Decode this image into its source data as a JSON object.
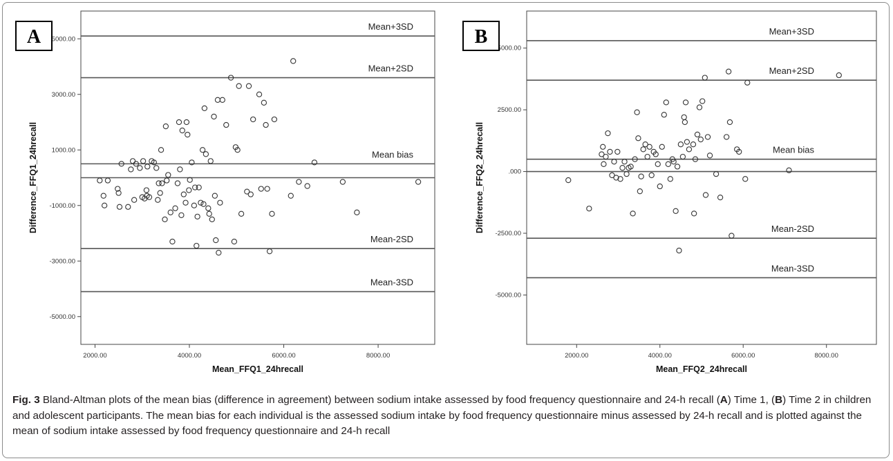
{
  "caption": {
    "fig_label": "Fig. 3",
    "text_1": " Bland-Altman plots of the mean bias (difference in agreement) between sodium intake assessed by food frequency questionnaire and 24-h recall (",
    "label_a": "A",
    "text_2": ") Time 1, (",
    "label_b": "B",
    "text_3": ") Time 2 in children and adolescent participants. The mean bias for each individual is the assessed sodium intake by food frequency questionnaire minus assessed by 24-h recall and is plotted against the mean of sodium intake assessed by food frequency questionnaire and 24-h recall"
  },
  "chart_data": [
    {
      "type": "scatter",
      "panel_label": "A",
      "xlabel": "Mean_FFQ1_24hrecall",
      "ylabel": "Difference_FFQ1_24hrecall",
      "xlim": [
        1700,
        9200
      ],
      "ylim": [
        -6000,
        6000
      ],
      "xticks": [
        2000,
        4000,
        6000,
        8000
      ],
      "yticks": [
        5000,
        3000,
        1000,
        -1000,
        -3000,
        -5000
      ],
      "xtick_labels": [
        "2000.00",
        "4000.00",
        "6000.00",
        "8000.00"
      ],
      "ytick_labels": [
        "5000.00",
        "3000.00",
        "1000.00",
        "-1000.00",
        "-3000.00",
        "-5000.00"
      ],
      "grid": false,
      "reference_lines": [
        {
          "label": "Mean+3SD",
          "y": 5100
        },
        {
          "label": "Mean+2SD",
          "y": 3600
        },
        {
          "label": "Mean bias",
          "y": 500
        },
        {
          "label": "",
          "y": 0
        },
        {
          "label": "Mean-2SD",
          "y": -2550
        },
        {
          "label": "Mean-3SD",
          "y": -4100
        }
      ],
      "marker_color": "#333333",
      "points": [
        [
          2100,
          -100
        ],
        [
          2180,
          -650
        ],
        [
          2200,
          -1000
        ],
        [
          2270,
          -100
        ],
        [
          2480,
          -400
        ],
        [
          2500,
          -550
        ],
        [
          2520,
          -1050
        ],
        [
          2560,
          500
        ],
        [
          2700,
          -1050
        ],
        [
          2760,
          300
        ],
        [
          2800,
          600
        ],
        [
          2830,
          -800
        ],
        [
          2870,
          500
        ],
        [
          2950,
          350
        ],
        [
          3000,
          -700
        ],
        [
          3020,
          600
        ],
        [
          3050,
          -750
        ],
        [
          3090,
          -450
        ],
        [
          3100,
          -650
        ],
        [
          3110,
          400
        ],
        [
          3150,
          -700
        ],
        [
          3200,
          600
        ],
        [
          3250,
          550
        ],
        [
          3300,
          350
        ],
        [
          3330,
          -800
        ],
        [
          3350,
          -200
        ],
        [
          3380,
          -550
        ],
        [
          3400,
          1000
        ],
        [
          3420,
          -200
        ],
        [
          3480,
          -1500
        ],
        [
          3500,
          1850
        ],
        [
          3520,
          -100
        ],
        [
          3550,
          100
        ],
        [
          3600,
          -1250
        ],
        [
          3640,
          -2300
        ],
        [
          3700,
          -1100
        ],
        [
          3750,
          -200
        ],
        [
          3780,
          2000
        ],
        [
          3800,
          300
        ],
        [
          3830,
          -1350
        ],
        [
          3850,
          1700
        ],
        [
          3880,
          -600
        ],
        [
          3920,
          -900
        ],
        [
          3940,
          2000
        ],
        [
          3960,
          1550
        ],
        [
          3990,
          -450
        ],
        [
          4010,
          -80
        ],
        [
          4050,
          550
        ],
        [
          4100,
          -1000
        ],
        [
          4120,
          -350
        ],
        [
          4150,
          -2450
        ],
        [
          4170,
          -1400
        ],
        [
          4200,
          -350
        ],
        [
          4240,
          -900
        ],
        [
          4280,
          1000
        ],
        [
          4300,
          -950
        ],
        [
          4320,
          2500
        ],
        [
          4350,
          850
        ],
        [
          4400,
          -1100
        ],
        [
          4420,
          -1300
        ],
        [
          4450,
          600
        ],
        [
          4480,
          -1500
        ],
        [
          4520,
          2200
        ],
        [
          4540,
          -650
        ],
        [
          4560,
          -2250
        ],
        [
          4600,
          2800
        ],
        [
          4620,
          -2700
        ],
        [
          4650,
          -900
        ],
        [
          4700,
          2800
        ],
        [
          4780,
          1900
        ],
        [
          4880,
          3600
        ],
        [
          4950,
          -2300
        ],
        [
          4980,
          1100
        ],
        [
          5020,
          1000
        ],
        [
          5050,
          3300
        ],
        [
          5100,
          -1300
        ],
        [
          5220,
          -500
        ],
        [
          5260,
          3300
        ],
        [
          5300,
          -600
        ],
        [
          5350,
          2100
        ],
        [
          5480,
          3000
        ],
        [
          5520,
          -400
        ],
        [
          5580,
          2700
        ],
        [
          5620,
          1900
        ],
        [
          5650,
          -400
        ],
        [
          5700,
          -2650
        ],
        [
          5750,
          -1300
        ],
        [
          5800,
          2100
        ],
        [
          6150,
          -650
        ],
        [
          6200,
          4200
        ],
        [
          6320,
          -150
        ],
        [
          6500,
          -300
        ],
        [
          6650,
          550
        ],
        [
          7250,
          -150
        ],
        [
          7550,
          -1250
        ],
        [
          8850,
          -150
        ]
      ]
    },
    {
      "type": "scatter",
      "panel_label": "B",
      "xlabel": "Mean_FFQ2_24hrecall",
      "ylabel": "Difference_FFQ2_24hrecall",
      "xlim": [
        800,
        9200
      ],
      "ylim": [
        -7000,
        6500
      ],
      "xticks": [
        2000,
        4000,
        6000,
        8000
      ],
      "yticks": [
        5000,
        2500,
        0,
        -2500,
        -5000
      ],
      "xtick_labels": [
        "2000.00",
        "4000.00",
        "6000.00",
        "8000.00"
      ],
      "ytick_labels": [
        "5000.00",
        "2500.00",
        ".000",
        "-2500.00",
        "-5000.00"
      ],
      "grid": false,
      "reference_lines": [
        {
          "label": "Mean+3SD",
          "y": 5300
        },
        {
          "label": "Mean+2SD",
          "y": 3700
        },
        {
          "label": "Mean bias",
          "y": 500
        },
        {
          "label": "",
          "y": 0
        },
        {
          "label": "Mean-2SD",
          "y": -2700
        },
        {
          "label": "Mean-3SD",
          "y": -4300
        }
      ],
      "marker_color": "#333333",
      "points": [
        [
          1800,
          -350
        ],
        [
          2300,
          -1500
        ],
        [
          2600,
          700
        ],
        [
          2630,
          1000
        ],
        [
          2650,
          300
        ],
        [
          2700,
          600
        ],
        [
          2750,
          1550
        ],
        [
          2800,
          800
        ],
        [
          2850,
          -150
        ],
        [
          2900,
          400
        ],
        [
          2950,
          -250
        ],
        [
          2980,
          800
        ],
        [
          3050,
          -300
        ],
        [
          3100,
          150
        ],
        [
          3150,
          400
        ],
        [
          3200,
          -100
        ],
        [
          3250,
          150
        ],
        [
          3300,
          200
        ],
        [
          3350,
          -1700
        ],
        [
          3400,
          500
        ],
        [
          3450,
          2400
        ],
        [
          3480,
          1350
        ],
        [
          3520,
          -800
        ],
        [
          3550,
          -200
        ],
        [
          3600,
          900
        ],
        [
          3650,
          1100
        ],
        [
          3700,
          600
        ],
        [
          3750,
          1000
        ],
        [
          3800,
          -150
        ],
        [
          3850,
          800
        ],
        [
          3900,
          700
        ],
        [
          3950,
          300
        ],
        [
          4000,
          -600
        ],
        [
          4050,
          1000
        ],
        [
          4100,
          2300
        ],
        [
          4150,
          2800
        ],
        [
          4200,
          300
        ],
        [
          4250,
          -300
        ],
        [
          4300,
          500
        ],
        [
          4330,
          400
        ],
        [
          4380,
          -1600
        ],
        [
          4420,
          200
        ],
        [
          4460,
          -3200
        ],
        [
          4500,
          1100
        ],
        [
          4550,
          600
        ],
        [
          4580,
          2200
        ],
        [
          4600,
          2000
        ],
        [
          4620,
          2800
        ],
        [
          4650,
          1200
        ],
        [
          4700,
          900
        ],
        [
          4800,
          1100
        ],
        [
          4820,
          -1700
        ],
        [
          4850,
          500
        ],
        [
          4900,
          1500
        ],
        [
          4950,
          2600
        ],
        [
          4980,
          1300
        ],
        [
          5020,
          2850
        ],
        [
          5080,
          3800
        ],
        [
          5100,
          -950
        ],
        [
          5150,
          1400
        ],
        [
          5200,
          650
        ],
        [
          5350,
          -100
        ],
        [
          5450,
          -1050
        ],
        [
          5600,
          1400
        ],
        [
          5650,
          4050
        ],
        [
          5680,
          2000
        ],
        [
          5720,
          -2600
        ],
        [
          5850,
          900
        ],
        [
          5900,
          800
        ],
        [
          6050,
          -300
        ],
        [
          6100,
          3600
        ],
        [
          7100,
          50
        ],
        [
          8300,
          3900
        ]
      ]
    }
  ]
}
